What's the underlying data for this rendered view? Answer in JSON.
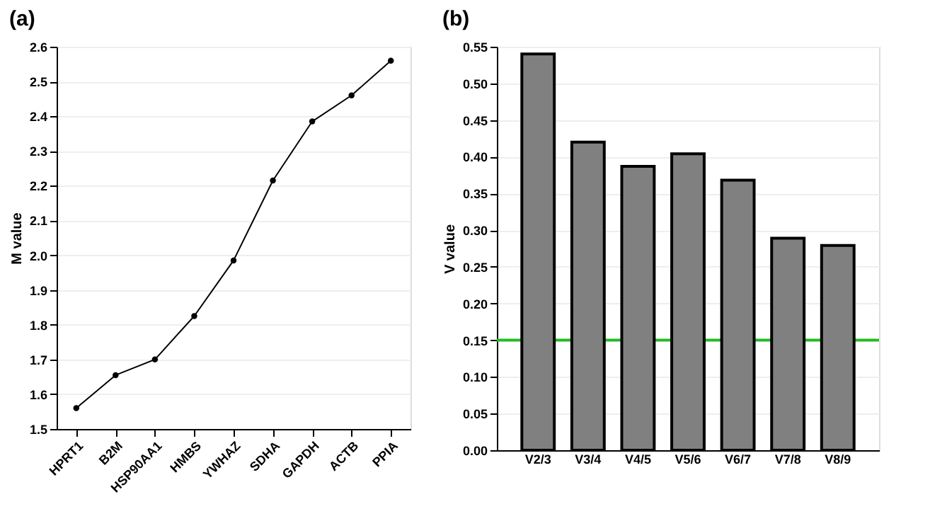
{
  "chart_data": [
    {
      "type": "line",
      "title": "(a)",
      "ylabel": "M value",
      "categories": [
        "HPRT1",
        "B2M",
        "HSP90AA1",
        "HMBS",
        "YWHAZ",
        "SDHA",
        "GAPDH",
        "ACTB",
        "PPIA"
      ],
      "series": [
        {
          "color": "#000000",
          "values": [
            1.56,
            1.655,
            1.7,
            1.825,
            1.985,
            2.215,
            2.385,
            2.46,
            2.56
          ]
        }
      ],
      "ylim": [
        1.5,
        2.6
      ],
      "yticks": [
        {
          "value": 1.5,
          "label": "1.5"
        },
        1.6,
        1.7,
        1.8,
        1.9,
        {
          "value": 2.0,
          "label": "2.0"
        },
        2.1,
        2.2,
        2.3,
        2.4,
        2.5,
        2.6
      ],
      "grid": "y",
      "marker": "circle",
      "line_style": "solid"
    },
    {
      "type": "bar",
      "title": "(b)",
      "ylabel": "V value",
      "categories": [
        "V2/3",
        "V3/4",
        "V4/5",
        "V5/6",
        "V6/7",
        "V7/8",
        "V8/9"
      ],
      "series": [
        {
          "color": "#808080",
          "values": [
            0.54,
            0.42,
            0.387,
            0.404,
            0.368,
            0.289,
            0.279
          ]
        }
      ],
      "ylim": [
        0,
        0.55
      ],
      "yticks": [
        {
          "value": 0,
          "label": "0.00"
        },
        0.05,
        {
          "value": 0.1,
          "label": "0.10"
        },
        0.15,
        {
          "value": 0.2,
          "label": "0.20"
        },
        0.25,
        {
          "value": 0.3,
          "label": "0.30"
        },
        0.35,
        {
          "value": 0.4,
          "label": "0.40"
        },
        0.45,
        {
          "value": 0.5,
          "label": "0.50"
        },
        0.55
      ],
      "ref_lines": [
        {
          "axis": "y",
          "value": 0.15,
          "color": "#22bb22"
        }
      ],
      "grid": "y"
    }
  ]
}
